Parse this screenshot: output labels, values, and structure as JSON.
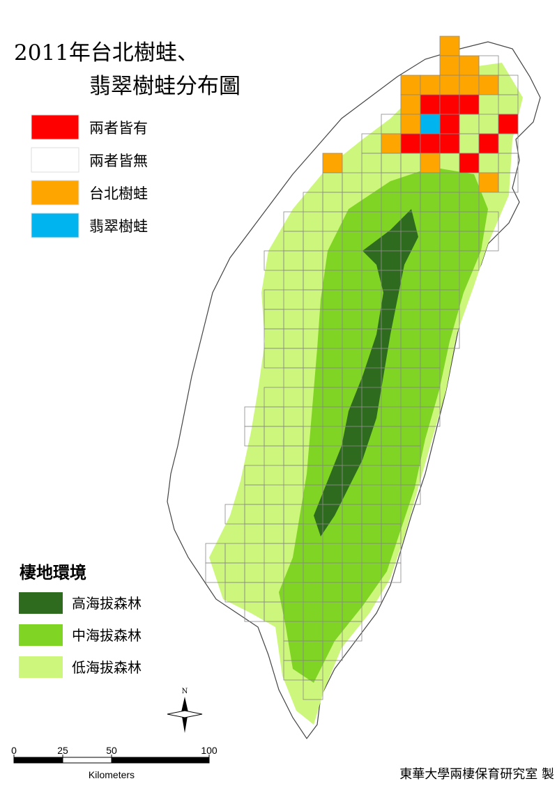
{
  "title": [
    "2011年台北樹蛙、",
    "翡翠樹蛙分布圖"
  ],
  "legend": {
    "items": [
      {
        "label": "兩者皆有",
        "color": "#ff0000"
      },
      {
        "label": "兩者皆無",
        "color": "#ffffff"
      },
      {
        "label": "台北樹蛙",
        "color": "#ffa500"
      },
      {
        "label": "翡翠樹蛙",
        "color": "#00b4f0"
      }
    ]
  },
  "habitat_legend": {
    "title": "棲地環境",
    "items": [
      {
        "label": "高海拔森林",
        "color": "#2e6b1e"
      },
      {
        "label": "中海拔森林",
        "color": "#80d424"
      },
      {
        "label": "低海拔森林",
        "color": "#cdf77c"
      }
    ]
  },
  "scale_bar": {
    "ticks": [
      0,
      25,
      50,
      100
    ],
    "unit": "Kilometers"
  },
  "north": "N",
  "credit": "東華大學兩棲保育研究室 製"
}
